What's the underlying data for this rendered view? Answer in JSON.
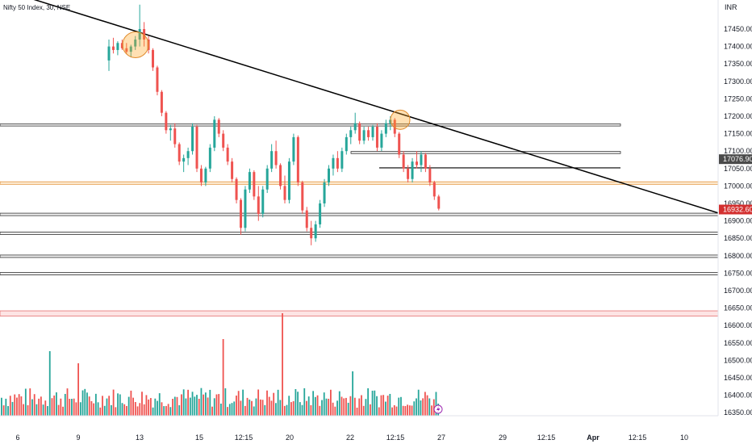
{
  "chart_data": {
    "type": "candlestick",
    "title": "Nifty 50 Index, 30, NSE",
    "currency": "INR",
    "y_axis_labels": [
      "17450.00",
      "17400.00",
      "17350.00",
      "17300.00",
      "17250.00",
      "17200.00",
      "17150.00",
      "17100.00",
      "17050.00",
      "17000.00",
      "16950.00",
      "16900.00",
      "16850.00",
      "16800.00",
      "16750.00",
      "16700.00",
      "16650.00",
      "16600.00",
      "16550.00",
      "16500.00",
      "16450.00",
      "16400.00",
      "16350.00"
    ],
    "x_axis_labels": [
      "6",
      "9",
      "13",
      "15",
      "12:15",
      "20",
      "22",
      "12:15",
      "27",
      "29",
      "12:15",
      "Apr",
      "12:15",
      "10"
    ],
    "ylim": [
      16330,
      17520
    ],
    "price_tags": [
      {
        "value": 17076.9,
        "label": "17076.90",
        "color": "#4a4a4a"
      },
      {
        "value": 16932.6,
        "label": "16932.60",
        "color": "#d32f2f"
      }
    ],
    "horizontal_levels": [
      {
        "y": 17178,
        "y2": 17172,
        "kind": "zone-grey",
        "from": "start",
        "to": "mid"
      },
      {
        "y": 17099,
        "y2": 17093,
        "kind": "zone-grey",
        "from": "mid2",
        "to": "mid"
      },
      {
        "y": 17052,
        "kind": "line-black",
        "from": "mid3",
        "to": "mid"
      },
      {
        "y": 17012,
        "y2": 17005,
        "kind": "zone-orange",
        "from": "start",
        "to": "end"
      },
      {
        "y": 16922,
        "y2": 16915,
        "kind": "zone-grey",
        "from": "start",
        "to": "end"
      },
      {
        "y": 16868,
        "y2": 16861,
        "kind": "zone-grey",
        "from": "start",
        "to": "end"
      },
      {
        "y": 16802,
        "y2": 16795,
        "kind": "zone-grey",
        "from": "start",
        "to": "end"
      },
      {
        "y": 16752,
        "y2": 16745,
        "kind": "zone-grey",
        "from": "start",
        "to": "end"
      },
      {
        "y": 16642,
        "y2": 16627,
        "kind": "zone-red",
        "from": "start",
        "to": "end"
      }
    ],
    "trendline": {
      "x1_value": 17505,
      "x2_value": 16932
    },
    "highlight_circles": [
      {
        "price": 17405,
        "label": "swing high 1"
      },
      {
        "price": 17190,
        "label": "swing high 2"
      }
    ],
    "candles": [
      {
        "o": 17360,
        "h": 17420,
        "l": 17330,
        "c": 17400
      },
      {
        "o": 17400,
        "h": 17425,
        "l": 17380,
        "c": 17390
      },
      {
        "o": 17390,
        "h": 17415,
        "l": 17375,
        "c": 17410
      },
      {
        "o": 17410,
        "h": 17420,
        "l": 17390,
        "c": 17395
      },
      {
        "o": 17395,
        "h": 17410,
        "l": 17380,
        "c": 17385
      },
      {
        "o": 17385,
        "h": 17405,
        "l": 17370,
        "c": 17400
      },
      {
        "o": 17400,
        "h": 17430,
        "l": 17390,
        "c": 17420
      },
      {
        "o": 17420,
        "h": 17520,
        "l": 17400,
        "c": 17450
      },
      {
        "o": 17450,
        "h": 17470,
        "l": 17400,
        "c": 17420
      },
      {
        "o": 17420,
        "h": 17430,
        "l": 17380,
        "c": 17390
      },
      {
        "o": 17390,
        "h": 17395,
        "l": 17330,
        "c": 17340
      },
      {
        "o": 17340,
        "h": 17345,
        "l": 17260,
        "c": 17270
      },
      {
        "o": 17270,
        "h": 17275,
        "l": 17200,
        "c": 17210
      },
      {
        "o": 17210,
        "h": 17215,
        "l": 17150,
        "c": 17160
      },
      {
        "o": 17160,
        "h": 17175,
        "l": 17130,
        "c": 17165
      },
      {
        "o": 17165,
        "h": 17180,
        "l": 17110,
        "c": 17120
      },
      {
        "o": 17120,
        "h": 17125,
        "l": 17060,
        "c": 17070
      },
      {
        "o": 17070,
        "h": 17090,
        "l": 17040,
        "c": 17080
      },
      {
        "o": 17080,
        "h": 17110,
        "l": 17060,
        "c": 17100
      },
      {
        "o": 17100,
        "h": 17180,
        "l": 17090,
        "c": 17170
      },
      {
        "o": 17170,
        "h": 17175,
        "l": 17040,
        "c": 17050
      },
      {
        "o": 17050,
        "h": 17060,
        "l": 17000,
        "c": 17010
      },
      {
        "o": 17010,
        "h": 17055,
        "l": 17000,
        "c": 17050
      },
      {
        "o": 17050,
        "h": 17120,
        "l": 17040,
        "c": 17110
      },
      {
        "o": 17110,
        "h": 17200,
        "l": 17100,
        "c": 17190
      },
      {
        "o": 17190,
        "h": 17195,
        "l": 17140,
        "c": 17150
      },
      {
        "o": 17150,
        "h": 17160,
        "l": 17100,
        "c": 17110
      },
      {
        "o": 17110,
        "h": 17120,
        "l": 17060,
        "c": 17070
      },
      {
        "o": 17070,
        "h": 17080,
        "l": 17010,
        "c": 17020
      },
      {
        "o": 17020,
        "h": 17025,
        "l": 16950,
        "c": 16960
      },
      {
        "o": 16960,
        "h": 16965,
        "l": 16860,
        "c": 16880
      },
      {
        "o": 16880,
        "h": 17000,
        "l": 16870,
        "c": 16990
      },
      {
        "o": 16990,
        "h": 17050,
        "l": 16980,
        "c": 17040
      },
      {
        "o": 17040,
        "h": 17045,
        "l": 16960,
        "c": 16970
      },
      {
        "o": 16970,
        "h": 17000,
        "l": 16900,
        "c": 16920
      },
      {
        "o": 16920,
        "h": 17000,
        "l": 16910,
        "c": 16990
      },
      {
        "o": 16990,
        "h": 17060,
        "l": 16980,
        "c": 17050
      },
      {
        "o": 17050,
        "h": 17120,
        "l": 17040,
        "c": 17100
      },
      {
        "o": 17100,
        "h": 17130,
        "l": 17050,
        "c": 17060
      },
      {
        "o": 17060,
        "h": 17065,
        "l": 16990,
        "c": 17000
      },
      {
        "o": 17000,
        "h": 17030,
        "l": 16950,
        "c": 16960
      },
      {
        "o": 16960,
        "h": 17080,
        "l": 16950,
        "c": 17070
      },
      {
        "o": 17070,
        "h": 17150,
        "l": 17060,
        "c": 17140
      },
      {
        "o": 17140,
        "h": 17145,
        "l": 17000,
        "c": 17010
      },
      {
        "o": 17010,
        "h": 17015,
        "l": 16920,
        "c": 16930
      },
      {
        "o": 16930,
        "h": 16940,
        "l": 16870,
        "c": 16880
      },
      {
        "o": 16880,
        "h": 16900,
        "l": 16830,
        "c": 16850
      },
      {
        "o": 16850,
        "h": 16900,
        "l": 16840,
        "c": 16890
      },
      {
        "o": 16890,
        "h": 16960,
        "l": 16880,
        "c": 16950
      },
      {
        "o": 16950,
        "h": 17020,
        "l": 16940,
        "c": 17010
      },
      {
        "o": 17010,
        "h": 17060,
        "l": 17000,
        "c": 17050
      },
      {
        "o": 17050,
        "h": 17090,
        "l": 17030,
        "c": 17080
      },
      {
        "o": 17080,
        "h": 17100,
        "l": 17040,
        "c": 17050
      },
      {
        "o": 17050,
        "h": 17110,
        "l": 17040,
        "c": 17100
      },
      {
        "o": 17100,
        "h": 17150,
        "l": 17090,
        "c": 17140
      },
      {
        "o": 17140,
        "h": 17170,
        "l": 17120,
        "c": 17160
      },
      {
        "o": 17160,
        "h": 17210,
        "l": 17150,
        "c": 17180
      },
      {
        "o": 17180,
        "h": 17185,
        "l": 17120,
        "c": 17130
      },
      {
        "o": 17130,
        "h": 17170,
        "l": 17120,
        "c": 17160
      },
      {
        "o": 17160,
        "h": 17170,
        "l": 17130,
        "c": 17140
      },
      {
        "o": 17140,
        "h": 17175,
        "l": 17130,
        "c": 17170
      },
      {
        "o": 17170,
        "h": 17180,
        "l": 17100,
        "c": 17110
      },
      {
        "o": 17110,
        "h": 17160,
        "l": 17100,
        "c": 17150
      },
      {
        "o": 17150,
        "h": 17190,
        "l": 17140,
        "c": 17180
      },
      {
        "o": 17180,
        "h": 17200,
        "l": 17160,
        "c": 17190
      },
      {
        "o": 17190,
        "h": 17195,
        "l": 17140,
        "c": 17150
      },
      {
        "o": 17150,
        "h": 17155,
        "l": 17080,
        "c": 17090
      },
      {
        "o": 17090,
        "h": 17100,
        "l": 17040,
        "c": 17050
      },
      {
        "o": 17050,
        "h": 17060,
        "l": 17010,
        "c": 17020
      },
      {
        "o": 17020,
        "h": 17080,
        "l": 17010,
        "c": 17070
      },
      {
        "o": 17070,
        "h": 17100,
        "l": 17050,
        "c": 17060
      },
      {
        "o": 17060,
        "h": 17100,
        "l": 17040,
        "c": 17090
      },
      {
        "o": 17090,
        "h": 17095,
        "l": 17040,
        "c": 17050
      },
      {
        "o": 17050,
        "h": 17060,
        "l": 17000,
        "c": 17010
      },
      {
        "o": 17010,
        "h": 17015,
        "l": 16960,
        "c": 16970
      },
      {
        "o": 16970,
        "h": 16975,
        "l": 16930,
        "c": 16935
      }
    ],
    "volume_color_up": "#26a69a",
    "volume_color_down": "#ef5350"
  }
}
